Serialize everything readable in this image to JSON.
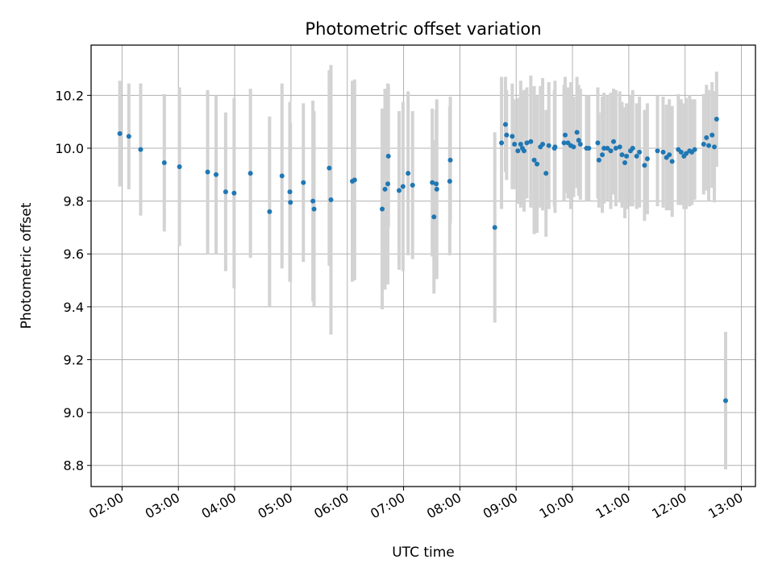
{
  "chart_data": {
    "type": "scatter",
    "title": "Photometric offset variation",
    "xlabel": "UTC time",
    "ylabel": "Photometric offset",
    "grid": true,
    "xlim_hours": [
      1.45,
      13.25
    ],
    "ylim": [
      8.72,
      10.39
    ],
    "x_ticks": [
      {
        "value": 2,
        "label": "02:00"
      },
      {
        "value": 3,
        "label": "03:00"
      },
      {
        "value": 4,
        "label": "04:00"
      },
      {
        "value": 5,
        "label": "05:00"
      },
      {
        "value": 6,
        "label": "06:00"
      },
      {
        "value": 7,
        "label": "07:00"
      },
      {
        "value": 8,
        "label": "08:00"
      },
      {
        "value": 9,
        "label": "09:00"
      },
      {
        "value": 10,
        "label": "10:00"
      },
      {
        "value": 11,
        "label": "11:00"
      },
      {
        "value": 12,
        "label": "12:00"
      },
      {
        "value": 13,
        "label": "13:00"
      }
    ],
    "y_ticks": [
      {
        "value": 8.8,
        "label": "8.8"
      },
      {
        "value": 9.0,
        "label": "9.0"
      },
      {
        "value": 9.2,
        "label": "9.2"
      },
      {
        "value": 9.4,
        "label": "9.4"
      },
      {
        "value": 9.6,
        "label": "9.6"
      },
      {
        "value": 9.8,
        "label": "9.8"
      },
      {
        "value": 10.0,
        "label": "10.0"
      },
      {
        "value": 10.2,
        "label": "10.2"
      }
    ],
    "series": [
      {
        "name": "Photometric offset",
        "color": "#1f77b4",
        "errorbar_color": "#d3d3d3",
        "x_hours": [
          1.96,
          2.12,
          2.33,
          2.75,
          3.02,
          3.52,
          3.67,
          3.84,
          3.99,
          4.28,
          4.62,
          4.84,
          4.98,
          4.99,
          5.22,
          5.39,
          5.41,
          5.68,
          5.71,
          6.09,
          6.13,
          6.62,
          6.67,
          6.72,
          6.73,
          6.92,
          6.99,
          7.08,
          7.16,
          7.51,
          7.54,
          7.58,
          7.59,
          7.82,
          7.83,
          8.62,
          8.74,
          8.81,
          8.83,
          8.93,
          8.97,
          9.03,
          9.08,
          9.11,
          9.14,
          9.19,
          9.26,
          9.32,
          9.37,
          9.43,
          9.47,
          9.53,
          9.58,
          9.68,
          9.69,
          9.85,
          9.87,
          9.92,
          9.97,
          10.02,
          10.08,
          10.11,
          10.14,
          10.25,
          10.29,
          10.45,
          10.47,
          10.53,
          10.56,
          10.62,
          10.68,
          10.73,
          10.77,
          10.84,
          10.88,
          10.93,
          10.96,
          11.03,
          11.07,
          11.14,
          11.19,
          11.28,
          11.33,
          11.51,
          11.61,
          11.67,
          11.72,
          11.77,
          11.88,
          11.93,
          11.98,
          12.02,
          12.08,
          12.12,
          12.17,
          12.33,
          12.38,
          12.42,
          12.48,
          12.52,
          12.56,
          12.72
        ],
        "y": [
          10.055,
          10.045,
          9.995,
          9.945,
          9.93,
          9.91,
          9.9,
          9.835,
          9.83,
          9.905,
          9.76,
          9.895,
          9.835,
          9.795,
          9.87,
          9.8,
          9.77,
          9.925,
          9.805,
          9.875,
          9.88,
          9.77,
          9.845,
          9.865,
          9.97,
          9.84,
          9.855,
          9.905,
          9.86,
          9.87,
          9.74,
          9.865,
          9.845,
          9.875,
          9.955,
          9.7,
          10.02,
          10.09,
          10.05,
          10.045,
          10.015,
          9.99,
          10.015,
          10.0,
          9.99,
          10.02,
          10.025,
          9.955,
          9.94,
          10.005,
          10.015,
          9.905,
          10.01,
          10.0,
          10.005,
          10.02,
          10.05,
          10.02,
          10.01,
          10.005,
          10.06,
          10.03,
          10.015,
          10.0,
          10.0,
          10.02,
          9.955,
          9.975,
          10.0,
          10.0,
          9.99,
          10.025,
          10.0,
          10.005,
          9.975,
          9.945,
          9.97,
          9.99,
          10.0,
          9.97,
          9.985,
          9.935,
          9.96,
          9.99,
          9.985,
          9.965,
          9.975,
          9.95,
          9.995,
          9.985,
          9.97,
          9.98,
          9.99,
          9.985,
          9.995,
          10.015,
          10.04,
          10.01,
          10.05,
          10.005,
          10.11,
          9.045
        ],
        "err": [
          0.2,
          0.2,
          0.25,
          0.26,
          0.3,
          0.31,
          0.3,
          0.3,
          0.36,
          0.32,
          0.36,
          0.35,
          0.34,
          0.3,
          0.3,
          0.38,
          0.37,
          0.37,
          0.51,
          0.38,
          0.38,
          0.38,
          0.38,
          0.38,
          0.27,
          0.3,
          0.32,
          0.31,
          0.28,
          0.28,
          0.29,
          0.28,
          0.34,
          0.28,
          0.24,
          0.36,
          0.25,
          0.18,
          0.17,
          0.2,
          0.17,
          0.2,
          0.24,
          0.21,
          0.23,
          0.21,
          0.25,
          0.28,
          0.26,
          0.23,
          0.25,
          0.24,
          0.24,
          0.22,
          0.25,
          0.22,
          0.22,
          0.21,
          0.24,
          0.19,
          0.21,
          0.21,
          0.21,
          0.2,
          0.2,
          0.21,
          0.18,
          0.22,
          0.21,
          0.2,
          0.22,
          0.2,
          0.22,
          0.21,
          0.2,
          0.21,
          0.2,
          0.21,
          0.22,
          0.2,
          0.21,
          0.21,
          0.21,
          0.21,
          0.21,
          0.2,
          0.21,
          0.21,
          0.21,
          0.2,
          0.2,
          0.21,
          0.21,
          0.2,
          0.19,
          0.19,
          0.2,
          0.21,
          0.2,
          0.21,
          0.18,
          0.26
        ]
      }
    ]
  }
}
